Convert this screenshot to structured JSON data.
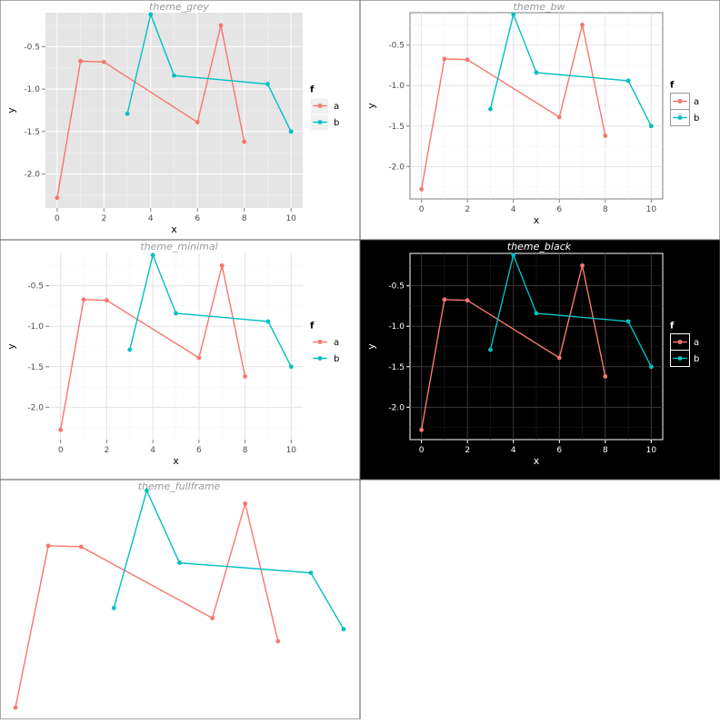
{
  "colors": {
    "series_a": "#F8766D",
    "series_b": "#00BFC4",
    "panel_grey_bg": "#E5E5E5",
    "black_bg": "#000000"
  },
  "legend": {
    "title": "f",
    "entries": [
      "a",
      "b"
    ]
  },
  "chart_data": [
    {
      "type": "line",
      "title": "theme_grey",
      "xlabel": "x",
      "ylabel": "y",
      "xlim": [
        -0.5,
        10.5
      ],
      "ylim": [
        -2.4,
        -0.1
      ],
      "xticks": [
        0,
        2,
        4,
        6,
        8,
        10
      ],
      "yticks": [
        -2.0,
        -1.5,
        -1.0,
        -0.5
      ],
      "xtick_labels": [
        "0",
        "2",
        "4",
        "6",
        "8",
        "10"
      ],
      "ytick_labels": [
        "-2.0",
        "-1.5",
        "-1.0",
        "-0.5"
      ],
      "series": [
        {
          "name": "a",
          "x": [
            0,
            1,
            2,
            6,
            7,
            8
          ],
          "y": [
            -2.28,
            -0.67,
            -0.68,
            -1.39,
            -0.25,
            -1.62
          ]
        },
        {
          "name": "b",
          "x": [
            3,
            4,
            5,
            9,
            10
          ],
          "y": [
            -1.29,
            -0.12,
            -0.84,
            -0.94,
            -1.5
          ]
        }
      ],
      "legend": {
        "title": "f",
        "entries": [
          "a",
          "b"
        ],
        "position": "right"
      }
    },
    {
      "type": "line",
      "title": "theme_bw",
      "xlabel": "x",
      "ylabel": "y",
      "xlim": [
        -0.5,
        10.5
      ],
      "ylim": [
        -2.4,
        -0.1
      ],
      "xticks": [
        0,
        2,
        4,
        6,
        8,
        10
      ],
      "yticks": [
        -2.0,
        -1.5,
        -1.0,
        -0.5
      ],
      "xtick_labels": [
        "0",
        "2",
        "4",
        "6",
        "8",
        "10"
      ],
      "ytick_labels": [
        "-2.0",
        "-1.5",
        "-1.0",
        "-0.5"
      ],
      "series": [
        {
          "name": "a",
          "x": [
            0,
            1,
            2,
            6,
            7,
            8
          ],
          "y": [
            -2.28,
            -0.67,
            -0.68,
            -1.39,
            -0.25,
            -1.62
          ]
        },
        {
          "name": "b",
          "x": [
            3,
            4,
            5,
            9,
            10
          ],
          "y": [
            -1.29,
            -0.12,
            -0.84,
            -0.94,
            -1.5
          ]
        }
      ],
      "legend": {
        "title": "f",
        "entries": [
          "a",
          "b"
        ],
        "position": "right"
      }
    },
    {
      "type": "line",
      "title": "theme_minimal",
      "xlabel": "x",
      "ylabel": "y",
      "xlim": [
        -0.5,
        10.5
      ],
      "ylim": [
        -2.4,
        -0.1
      ],
      "xticks": [
        0,
        2,
        4,
        6,
        8,
        10
      ],
      "yticks": [
        -2.0,
        -1.5,
        -1.0,
        -0.5
      ],
      "xtick_labels": [
        "0",
        "2",
        "4",
        "6",
        "8",
        "10"
      ],
      "ytick_labels": [
        "-2.0",
        "-1.5",
        "-1.0",
        "-0.5"
      ],
      "series": [
        {
          "name": "a",
          "x": [
            0,
            1,
            2,
            6,
            7,
            8
          ],
          "y": [
            -2.28,
            -0.67,
            -0.68,
            -1.39,
            -0.25,
            -1.62
          ]
        },
        {
          "name": "b",
          "x": [
            3,
            4,
            5,
            9,
            10
          ],
          "y": [
            -1.29,
            -0.12,
            -0.84,
            -0.94,
            -1.5
          ]
        }
      ],
      "legend": {
        "title": "f",
        "entries": [
          "a",
          "b"
        ],
        "position": "right"
      }
    },
    {
      "type": "line",
      "title": "theme_black",
      "xlabel": "x",
      "ylabel": "y",
      "xlim": [
        -0.5,
        10.5
      ],
      "ylim": [
        -2.4,
        -0.1
      ],
      "xticks": [
        0,
        2,
        4,
        6,
        8,
        10
      ],
      "yticks": [
        -2.0,
        -1.5,
        -1.0,
        -0.5
      ],
      "xtick_labels": [
        "0",
        "2",
        "4",
        "6",
        "8",
        "10"
      ],
      "ytick_labels": [
        "-2.0",
        "-1.5",
        "-1.0",
        "-0.5"
      ],
      "series": [
        {
          "name": "a",
          "x": [
            0,
            1,
            2,
            6,
            7,
            8
          ],
          "y": [
            -2.28,
            -0.67,
            -0.68,
            -1.39,
            -0.25,
            -1.62
          ]
        },
        {
          "name": "b",
          "x": [
            3,
            4,
            5,
            9,
            10
          ],
          "y": [
            -1.29,
            -0.12,
            -0.84,
            -0.94,
            -1.5
          ]
        }
      ],
      "legend": {
        "title": "f",
        "entries": [
          "a",
          "b"
        ],
        "position": "right"
      }
    },
    {
      "type": "line",
      "title": "theme_fullframe",
      "xlabel": "",
      "ylabel": "",
      "xlim": [
        0,
        10
      ],
      "ylim": [
        -2.28,
        -0.12
      ],
      "xticks": [],
      "yticks": [],
      "xtick_labels": [],
      "ytick_labels": [],
      "series": [
        {
          "name": "a",
          "x": [
            0,
            1,
            2,
            6,
            7,
            8
          ],
          "y": [
            -2.28,
            -0.67,
            -0.68,
            -1.39,
            -0.25,
            -1.62
          ]
        },
        {
          "name": "b",
          "x": [
            3,
            4,
            5,
            9,
            10
          ],
          "y": [
            -1.29,
            -0.12,
            -0.84,
            -0.94,
            -1.5
          ]
        }
      ]
    }
  ]
}
